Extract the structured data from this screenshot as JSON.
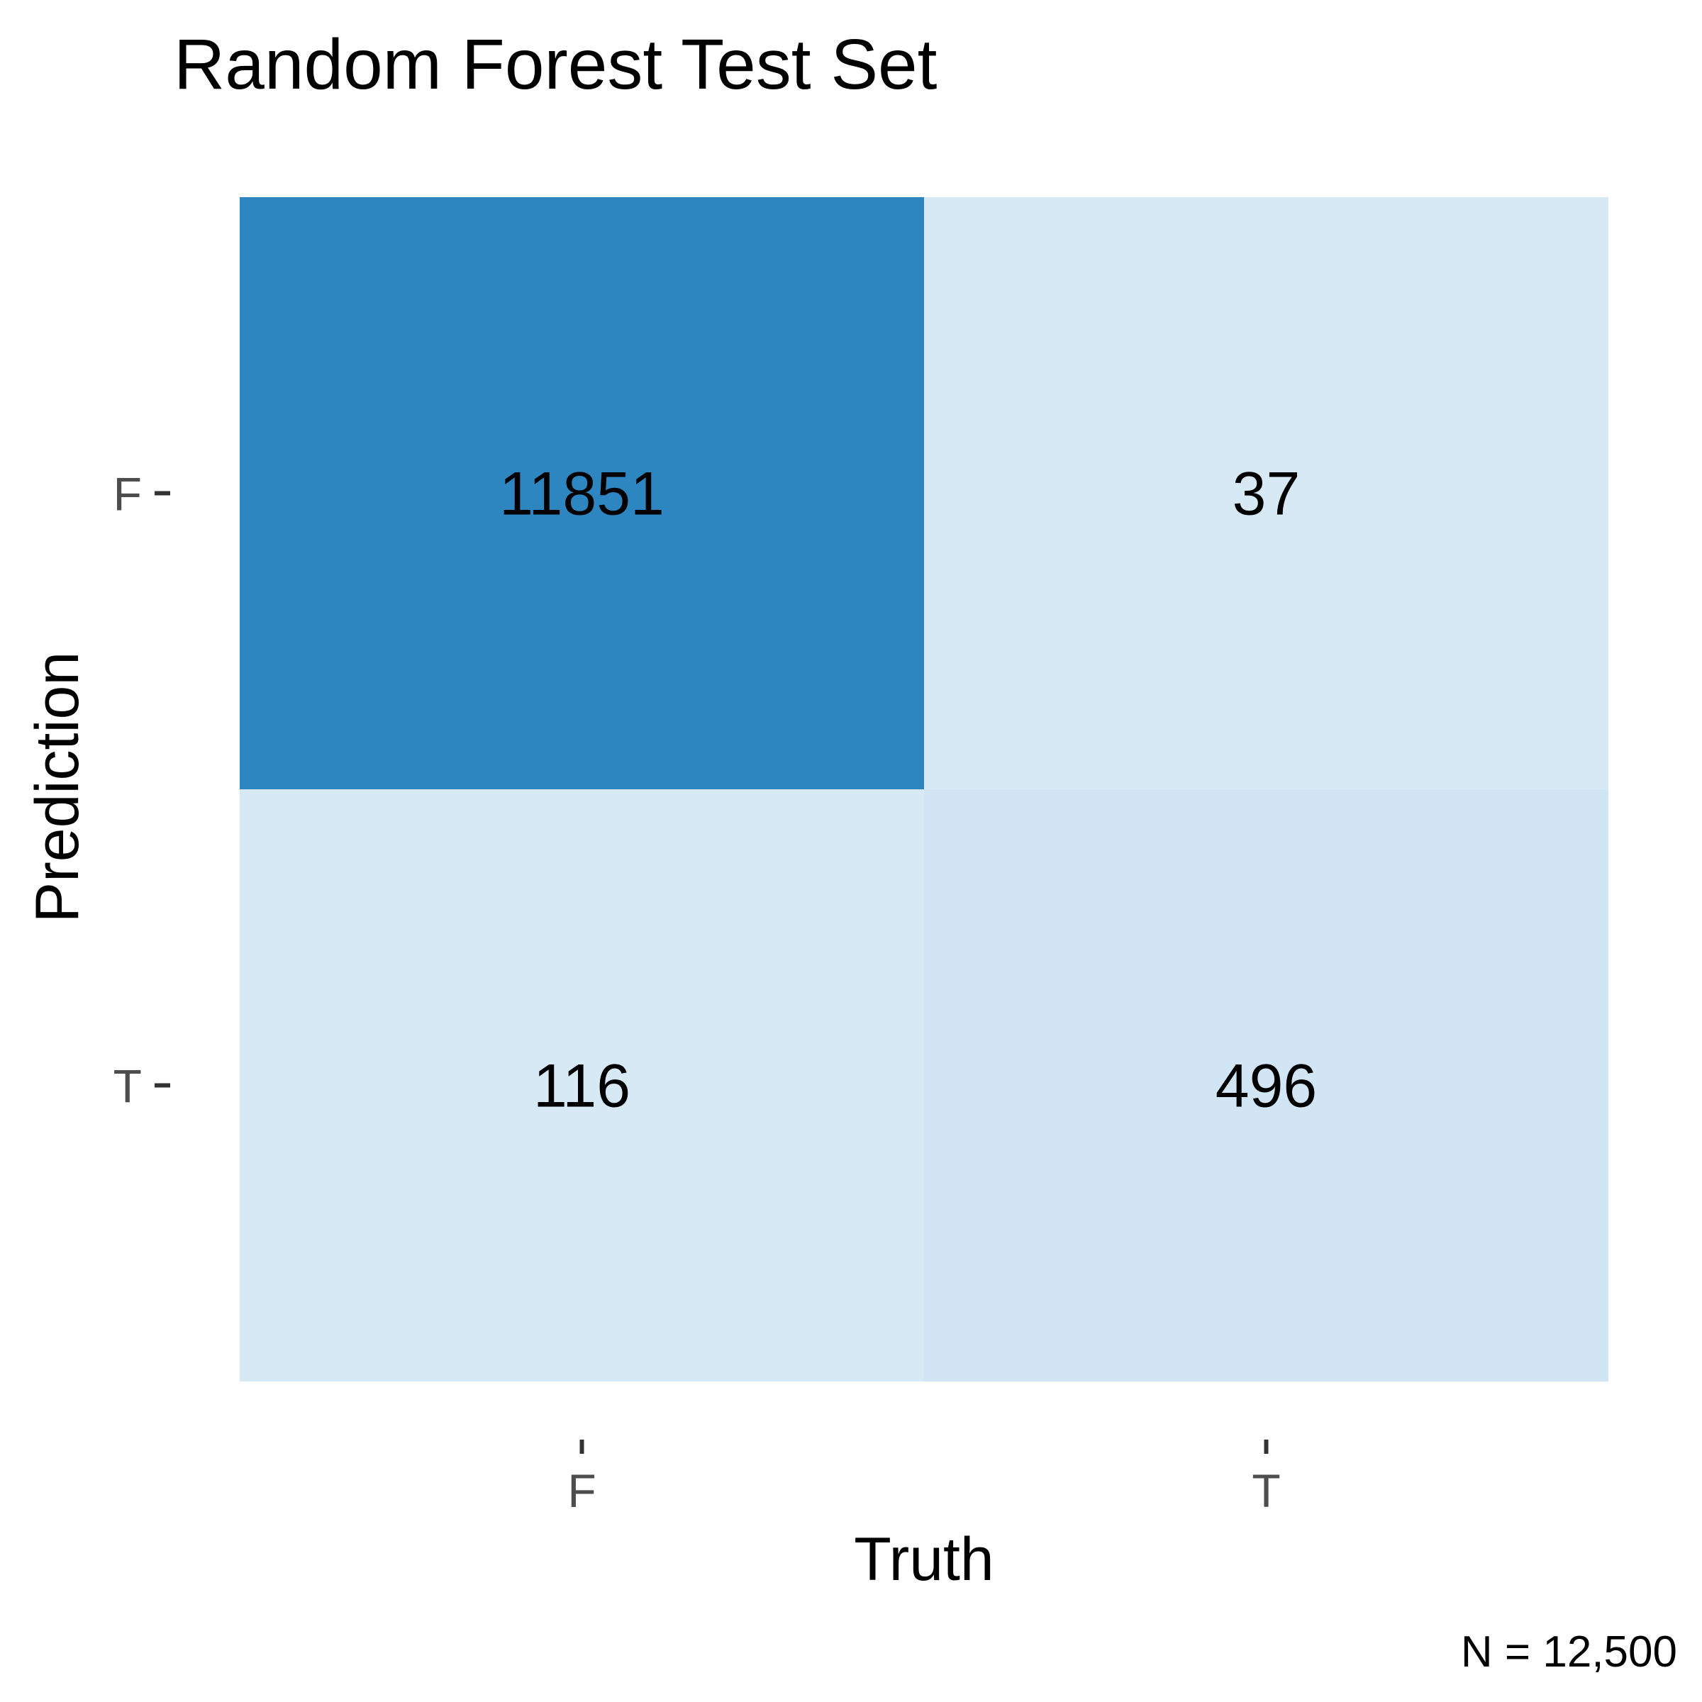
{
  "chart_data": {
    "type": "heatmap",
    "title": "Random Forest Test Set",
    "xlabel": "Truth",
    "ylabel": "Prediction",
    "x_categories": [
      "F",
      "T"
    ],
    "y_categories": [
      "F",
      "T"
    ],
    "cells": [
      {
        "prediction": "F",
        "truth": "F",
        "value": 11851,
        "color": "#2e86c1"
      },
      {
        "prediction": "F",
        "truth": "T",
        "value": 37,
        "color": "#d8e9f6"
      },
      {
        "prediction": "T",
        "truth": "F",
        "value": 116,
        "color": "#d8e9f6"
      },
      {
        "prediction": "T",
        "truth": "T",
        "value": 496,
        "color": "#d2e5f5"
      }
    ],
    "caption": "N = 12,500",
    "legend": "none",
    "grid": false
  }
}
